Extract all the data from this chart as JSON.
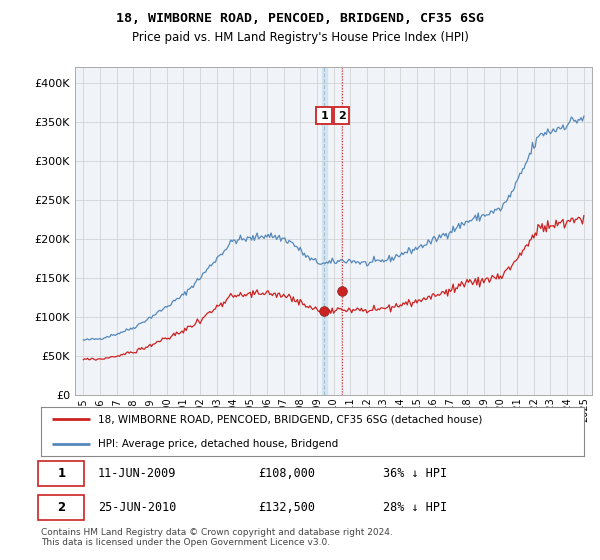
{
  "title": "18, WIMBORNE ROAD, PENCOED, BRIDGEND, CF35 6SG",
  "subtitle": "Price paid vs. HM Land Registry's House Price Index (HPI)",
  "legend_house": "18, WIMBORNE ROAD, PENCOED, BRIDGEND, CF35 6SG (detached house)",
  "legend_hpi": "HPI: Average price, detached house, Bridgend",
  "footer": "Contains HM Land Registry data © Crown copyright and database right 2024.\nThis data is licensed under the Open Government Licence v3.0.",
  "sale1_label": "1",
  "sale1_date": "11-JUN-2009",
  "sale1_price": "£108,000",
  "sale1_hpi": "36% ↓ HPI",
  "sale1_year": 2009.44,
  "sale1_value": 108000,
  "sale2_label": "2",
  "sale2_date": "25-JUN-2010",
  "sale2_price": "£132,500",
  "sale2_hpi": "28% ↓ HPI",
  "sale2_year": 2010.48,
  "sale2_value": 132500,
  "hpi_color": "#5588bb",
  "house_color": "#cc2222",
  "ylim": [
    0,
    420000
  ],
  "yticks": [
    0,
    50000,
    100000,
    150000,
    200000,
    250000,
    300000,
    350000,
    400000
  ],
  "ytick_labels": [
    "£0",
    "£50K",
    "£100K",
    "£150K",
    "£200K",
    "£250K",
    "£300K",
    "£350K",
    "£400K"
  ],
  "xlim": [
    1994.5,
    2025.5
  ],
  "xticks": [
    1995,
    1996,
    1997,
    1998,
    1999,
    2000,
    2001,
    2002,
    2003,
    2004,
    2005,
    2006,
    2007,
    2008,
    2009,
    2010,
    2011,
    2012,
    2013,
    2014,
    2015,
    2016,
    2017,
    2018,
    2019,
    2020,
    2021,
    2022,
    2023,
    2024,
    2025
  ],
  "bg_color": "#f0f4f8",
  "grid_color": "#cccccc"
}
